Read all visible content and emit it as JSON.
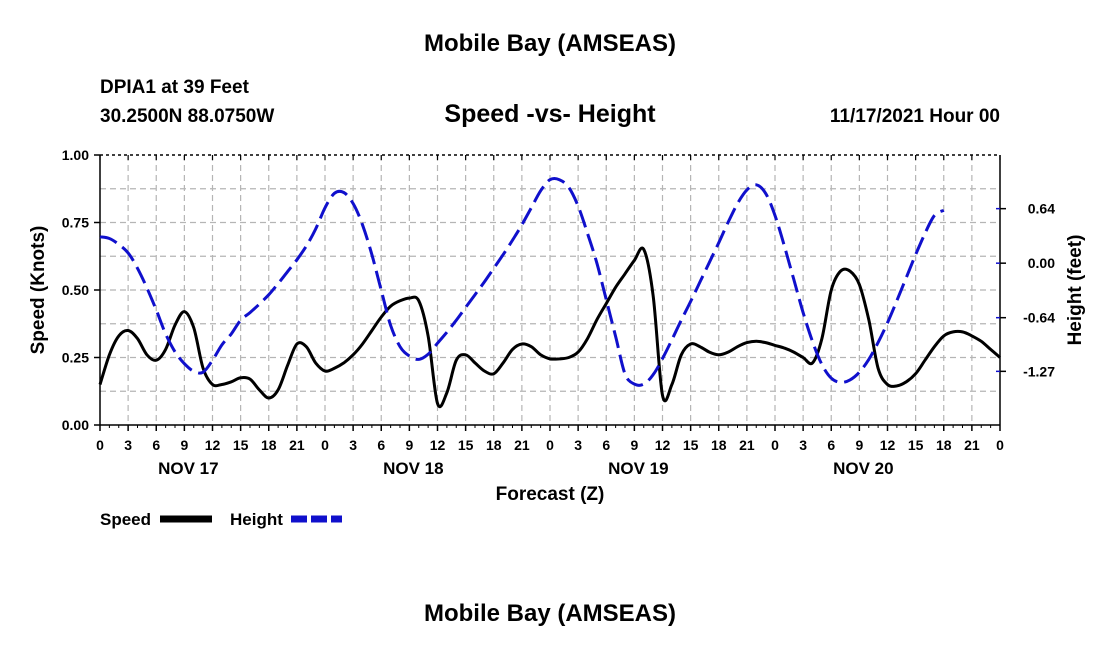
{
  "header": {
    "title": "Mobile Bay (AMSEAS)",
    "station": "DPIA1 at 39 Feet",
    "coords": "30.2500N  88.0750W",
    "subtitle": "Speed -vs- Height",
    "datetime": "11/17/2021 Hour 00",
    "bottom_title": "Mobile Bay (AMSEAS)"
  },
  "chart_data": {
    "type": "line",
    "title": "Speed -vs- Height",
    "xlabel": "Forecast (Z)",
    "ylabel": "Speed (Knots)",
    "y2label": "Height (feet)",
    "x_hours": [
      0,
      96
    ],
    "ylim": [
      0,
      1
    ],
    "y2lim": [
      -1.9,
      1.27
    ],
    "grid": true,
    "x_tick_hours": [
      0,
      3,
      6,
      9,
      12,
      15,
      18,
      21,
      24,
      27,
      30,
      33,
      36,
      39,
      42,
      45,
      48,
      51,
      54,
      57,
      60,
      63,
      66,
      69,
      72,
      75,
      78,
      81,
      84,
      87,
      90,
      93,
      96
    ],
    "x_tick_labels": [
      "0",
      "3",
      "6",
      "9",
      "12",
      "15",
      "18",
      "21",
      "0",
      "3",
      "6",
      "9",
      "12",
      "15",
      "18",
      "21",
      "0",
      "3",
      "6",
      "9",
      "12",
      "15",
      "18",
      "21",
      "0",
      "3",
      "6",
      "9",
      "12",
      "15",
      "18",
      "21",
      "0"
    ],
    "day_labels": [
      {
        "hour": 9,
        "label": "NOV 17"
      },
      {
        "hour": 33,
        "label": "NOV 18"
      },
      {
        "hour": 57,
        "label": "NOV 19"
      },
      {
        "hour": 81,
        "label": "NOV 20"
      }
    ],
    "y_ticks": [
      {
        "value": 0.0,
        "label": "0.00"
      },
      {
        "value": 0.25,
        "label": "0.25"
      },
      {
        "value": 0.5,
        "label": "0.50"
      },
      {
        "value": 0.75,
        "label": "0.75"
      },
      {
        "value": 1.0,
        "label": "1.00"
      }
    ],
    "y2_ticks": [
      {
        "value": 0.64,
        "label": "0.64"
      },
      {
        "value": 0.0,
        "label": "0.00"
      },
      {
        "value": -0.64,
        "label": "-0.64"
      },
      {
        "value": -1.27,
        "label": "-1.27"
      }
    ],
    "legend": [
      {
        "name": "Speed",
        "color": "#000000",
        "style": "solid"
      },
      {
        "name": "Height",
        "color": "#1010cc",
        "style": "dashed"
      }
    ],
    "series": [
      {
        "name": "Speed",
        "axis": "left",
        "color": "#000000",
        "points": [
          [
            0,
            0.15
          ],
          [
            1,
            0.26
          ],
          [
            2,
            0.33
          ],
          [
            3,
            0.35
          ],
          [
            4,
            0.32
          ],
          [
            5,
            0.26
          ],
          [
            6,
            0.24
          ],
          [
            7,
            0.28
          ],
          [
            8,
            0.37
          ],
          [
            9,
            0.42
          ],
          [
            10,
            0.36
          ],
          [
            11,
            0.21
          ],
          [
            12,
            0.15
          ],
          [
            13,
            0.15
          ],
          [
            14,
            0.16
          ],
          [
            15,
            0.175
          ],
          [
            16,
            0.17
          ],
          [
            17,
            0.13
          ],
          [
            18,
            0.1
          ],
          [
            19,
            0.13
          ],
          [
            20,
            0.22
          ],
          [
            21,
            0.3
          ],
          [
            22,
            0.29
          ],
          [
            23,
            0.23
          ],
          [
            24,
            0.2
          ],
          [
            25,
            0.21
          ],
          [
            26,
            0.23
          ],
          [
            27,
            0.26
          ],
          [
            28,
            0.3
          ],
          [
            29,
            0.35
          ],
          [
            30,
            0.4
          ],
          [
            31,
            0.44
          ],
          [
            32,
            0.46
          ],
          [
            33,
            0.47
          ],
          [
            34,
            0.46
          ],
          [
            35,
            0.33
          ],
          [
            36,
            0.08
          ],
          [
            37,
            0.12
          ],
          [
            38,
            0.24
          ],
          [
            39,
            0.26
          ],
          [
            40,
            0.23
          ],
          [
            41,
            0.2
          ],
          [
            42,
            0.19
          ],
          [
            43,
            0.23
          ],
          [
            44,
            0.28
          ],
          [
            45,
            0.3
          ],
          [
            46,
            0.29
          ],
          [
            47,
            0.26
          ],
          [
            48,
            0.245
          ],
          [
            49,
            0.245
          ],
          [
            50,
            0.25
          ],
          [
            51,
            0.27
          ],
          [
            52,
            0.32
          ],
          [
            53,
            0.39
          ],
          [
            54,
            0.45
          ],
          [
            55,
            0.51
          ],
          [
            56,
            0.56
          ],
          [
            57,
            0.61
          ],
          [
            58,
            0.65
          ],
          [
            59,
            0.48
          ],
          [
            60,
            0.11
          ],
          [
            61,
            0.15
          ],
          [
            62,
            0.26
          ],
          [
            63,
            0.3
          ],
          [
            64,
            0.29
          ],
          [
            65,
            0.27
          ],
          [
            66,
            0.26
          ],
          [
            67,
            0.27
          ],
          [
            68,
            0.29
          ],
          [
            69,
            0.305
          ],
          [
            70,
            0.31
          ],
          [
            71,
            0.305
          ],
          [
            72,
            0.295
          ],
          [
            73,
            0.285
          ],
          [
            74,
            0.27
          ],
          [
            75,
            0.25
          ],
          [
            76,
            0.23
          ],
          [
            77,
            0.32
          ],
          [
            78,
            0.5
          ],
          [
            79,
            0.57
          ],
          [
            80,
            0.57
          ],
          [
            81,
            0.52
          ],
          [
            82,
            0.39
          ],
          [
            83,
            0.21
          ],
          [
            84,
            0.15
          ],
          [
            85,
            0.145
          ],
          [
            86,
            0.16
          ],
          [
            87,
            0.19
          ],
          [
            88,
            0.24
          ],
          [
            89,
            0.29
          ],
          [
            90,
            0.33
          ],
          [
            91,
            0.345
          ],
          [
            92,
            0.345
          ],
          [
            93,
            0.33
          ],
          [
            94,
            0.31
          ],
          [
            95,
            0.28
          ],
          [
            96,
            0.25
          ]
        ]
      },
      {
        "name": "Height",
        "axis": "right",
        "color": "#1010cc",
        "points": [
          [
            0,
            0.31
          ],
          [
            1,
            0.29
          ],
          [
            2,
            0.22
          ],
          [
            3,
            0.12
          ],
          [
            4,
            -0.06
          ],
          [
            5,
            -0.29
          ],
          [
            6,
            -0.55
          ],
          [
            7,
            -0.83
          ],
          [
            8,
            -1.04
          ],
          [
            9,
            -1.18
          ],
          [
            10,
            -1.27
          ],
          [
            11,
            -1.28
          ],
          [
            12,
            -1.14
          ],
          [
            13,
            -0.96
          ],
          [
            14,
            -0.83
          ],
          [
            15,
            -0.67
          ],
          [
            16,
            -0.58
          ],
          [
            17,
            -0.48
          ],
          [
            18,
            -0.37
          ],
          [
            19,
            -0.24
          ],
          [
            20,
            -0.1
          ],
          [
            21,
            0.04
          ],
          [
            22,
            0.2
          ],
          [
            23,
            0.4
          ],
          [
            24,
            0.65
          ],
          [
            25,
            0.82
          ],
          [
            26,
            0.83
          ],
          [
            27,
            0.7
          ],
          [
            28,
            0.45
          ],
          [
            29,
            0.1
          ],
          [
            30,
            -0.32
          ],
          [
            31,
            -0.73
          ],
          [
            32,
            -0.98
          ],
          [
            33,
            -1.09
          ],
          [
            34,
            -1.13
          ],
          [
            35,
            -1.07
          ],
          [
            36,
            -0.94
          ],
          [
            37,
            -0.81
          ],
          [
            38,
            -0.67
          ],
          [
            39,
            -0.52
          ],
          [
            40,
            -0.37
          ],
          [
            41,
            -0.22
          ],
          [
            42,
            -0.06
          ],
          [
            43,
            0.1
          ],
          [
            44,
            0.27
          ],
          [
            45,
            0.45
          ],
          [
            46,
            0.65
          ],
          [
            47,
            0.85
          ],
          [
            48,
            0.98
          ],
          [
            49,
            0.98
          ],
          [
            50,
            0.89
          ],
          [
            51,
            0.67
          ],
          [
            52,
            0.35
          ],
          [
            53,
            0.0
          ],
          [
            54,
            -0.43
          ],
          [
            55,
            -0.86
          ],
          [
            56,
            -1.3
          ],
          [
            57,
            -1.42
          ],
          [
            58,
            -1.42
          ],
          [
            59,
            -1.31
          ],
          [
            60,
            -1.12
          ],
          [
            61,
            -0.9
          ],
          [
            62,
            -0.67
          ],
          [
            63,
            -0.45
          ],
          [
            64,
            -0.22
          ],
          [
            65,
            0.01
          ],
          [
            66,
            0.24
          ],
          [
            67,
            0.48
          ],
          [
            68,
            0.7
          ],
          [
            69,
            0.86
          ],
          [
            70,
            0.92
          ],
          [
            71,
            0.82
          ],
          [
            72,
            0.56
          ],
          [
            73,
            0.2
          ],
          [
            74,
            -0.19
          ],
          [
            75,
            -0.58
          ],
          [
            76,
            -0.92
          ],
          [
            77,
            -1.19
          ],
          [
            78,
            -1.35
          ],
          [
            79,
            -1.4
          ],
          [
            80,
            -1.37
          ],
          [
            81,
            -1.28
          ],
          [
            82,
            -1.13
          ],
          [
            83,
            -0.93
          ],
          [
            84,
            -0.7
          ],
          [
            85,
            -0.44
          ],
          [
            86,
            -0.17
          ],
          [
            87,
            0.1
          ],
          [
            88,
            0.35
          ],
          [
            89,
            0.56
          ],
          [
            90,
            0.62
          ]
        ]
      }
    ]
  }
}
